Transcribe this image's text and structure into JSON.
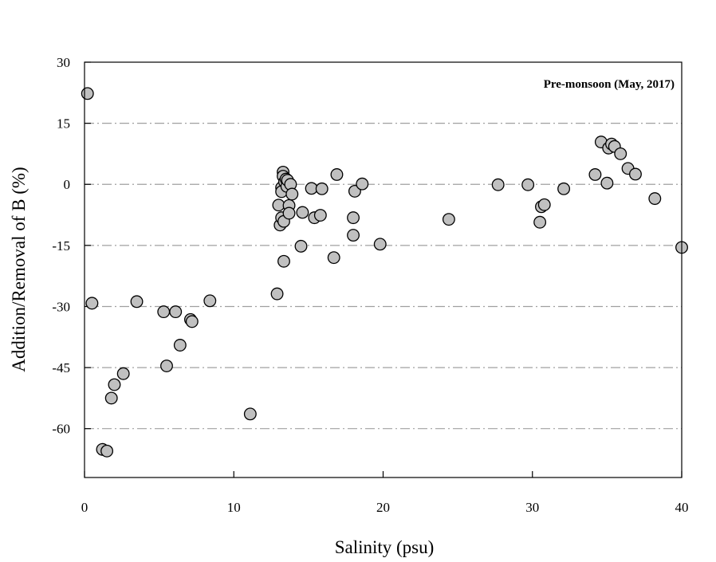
{
  "chart_data": {
    "type": "scatter",
    "annotation": "Pre-monsoon (May, 2017)",
    "xlabel": "Salinity (psu)",
    "ylabel": "Addition/Removal of B (%)",
    "xlim": [
      0,
      40
    ],
    "ylim": [
      -72,
      30
    ],
    "xticks": [
      0,
      10,
      20,
      30,
      40
    ],
    "yticks": [
      30,
      15,
      0,
      -15,
      -30,
      -45,
      -60
    ],
    "grid": "horizontal dash-dot",
    "points": [
      {
        "x": 0.2,
        "y": 22.3
      },
      {
        "x": 0.5,
        "y": -29.2
      },
      {
        "x": 1.2,
        "y": -65.1
      },
      {
        "x": 1.5,
        "y": -65.5
      },
      {
        "x": 1.8,
        "y": -52.5
      },
      {
        "x": 2.0,
        "y": -49.2
      },
      {
        "x": 2.6,
        "y": -46.5
      },
      {
        "x": 3.5,
        "y": -28.8
      },
      {
        "x": 5.3,
        "y": -31.3
      },
      {
        "x": 5.5,
        "y": -44.6
      },
      {
        "x": 6.1,
        "y": -31.3
      },
      {
        "x": 6.4,
        "y": -39.5
      },
      {
        "x": 7.1,
        "y": -33.2
      },
      {
        "x": 7.2,
        "y": -33.7
      },
      {
        "x": 8.4,
        "y": -28.6
      },
      {
        "x": 11.1,
        "y": -56.4
      },
      {
        "x": 12.9,
        "y": -26.9
      },
      {
        "x": 13.0,
        "y": -5.1
      },
      {
        "x": 13.1,
        "y": -10.0
      },
      {
        "x": 13.2,
        "y": -8.2
      },
      {
        "x": 13.2,
        "y": -0.8
      },
      {
        "x": 13.2,
        "y": -1.8
      },
      {
        "x": 13.3,
        "y": 3.0
      },
      {
        "x": 13.3,
        "y": 2.0
      },
      {
        "x": 13.35,
        "y": -18.9
      },
      {
        "x": 13.35,
        "y": -9.1
      },
      {
        "x": 13.4,
        "y": 0.6
      },
      {
        "x": 13.5,
        "y": 1.3
      },
      {
        "x": 13.55,
        "y": -0.5
      },
      {
        "x": 13.6,
        "y": 1.0
      },
      {
        "x": 13.7,
        "y": -5.2
      },
      {
        "x": 13.7,
        "y": -7.1
      },
      {
        "x": 13.8,
        "y": 0.0
      },
      {
        "x": 13.9,
        "y": -2.4
      },
      {
        "x": 14.5,
        "y": -15.2
      },
      {
        "x": 14.6,
        "y": -6.9
      },
      {
        "x": 15.2,
        "y": -1.0
      },
      {
        "x": 15.4,
        "y": -8.2
      },
      {
        "x": 15.8,
        "y": -7.6
      },
      {
        "x": 15.9,
        "y": -1.1
      },
      {
        "x": 16.7,
        "y": -18.0
      },
      {
        "x": 16.9,
        "y": 2.4
      },
      {
        "x": 18.0,
        "y": -8.2
      },
      {
        "x": 18.0,
        "y": -12.5
      },
      {
        "x": 18.1,
        "y": -1.7
      },
      {
        "x": 18.6,
        "y": 0.1
      },
      {
        "x": 19.8,
        "y": -14.7
      },
      {
        "x": 24.4,
        "y": -8.6
      },
      {
        "x": 27.7,
        "y": -0.1
      },
      {
        "x": 29.7,
        "y": -0.1
      },
      {
        "x": 30.5,
        "y": -9.3
      },
      {
        "x": 30.6,
        "y": -5.5
      },
      {
        "x": 30.8,
        "y": -5.0
      },
      {
        "x": 32.1,
        "y": -1.1
      },
      {
        "x": 34.2,
        "y": 2.4
      },
      {
        "x": 34.6,
        "y": 10.4
      },
      {
        "x": 35.0,
        "y": 0.3
      },
      {
        "x": 35.1,
        "y": 8.9
      },
      {
        "x": 35.3,
        "y": 9.9
      },
      {
        "x": 35.5,
        "y": 9.3
      },
      {
        "x": 35.9,
        "y": 7.5
      },
      {
        "x": 36.4,
        "y": 3.9
      },
      {
        "x": 36.9,
        "y": 2.5
      },
      {
        "x": 38.2,
        "y": -3.5
      },
      {
        "x": 40.0,
        "y": -15.5
      }
    ]
  }
}
